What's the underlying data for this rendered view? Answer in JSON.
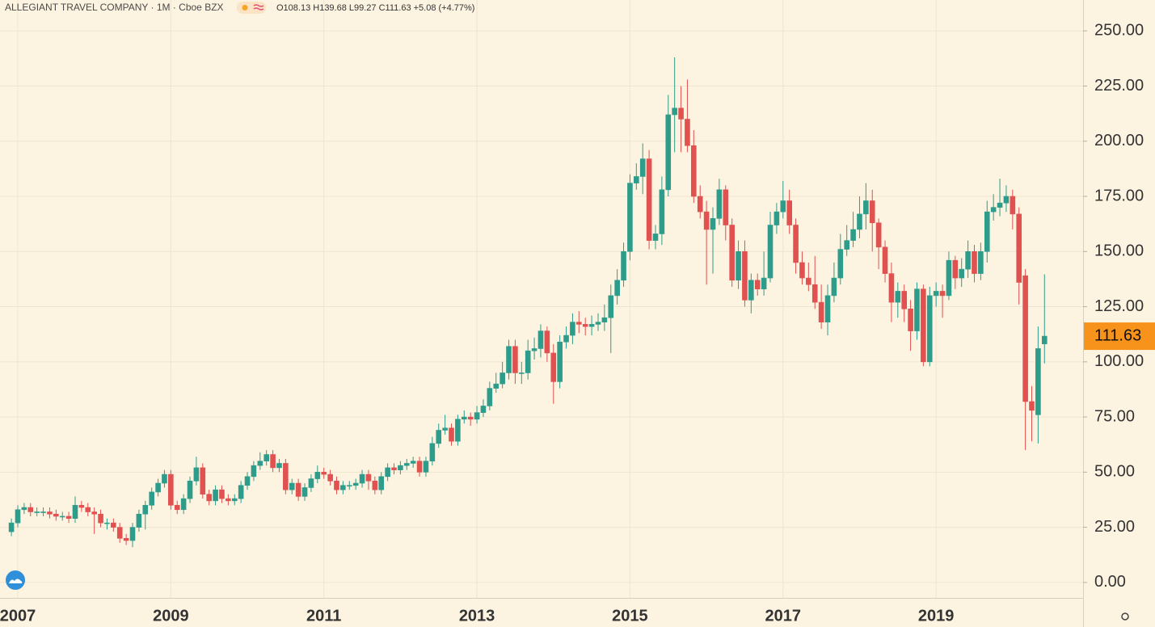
{
  "chart_data": {
    "type": "candlestick",
    "title": "ALLEGIANT TRAVEL COMPANY · 1M · Cboe BZX",
    "ohlc_text": "O108.13 H139.68 L99.27 C111.63 +5.08 (+4.77%)",
    "up_color": "#2e9c8b",
    "down_color": "#e05150",
    "last_price_color": "#f7931a",
    "grid": true,
    "ylim": [
      -7,
      264
    ],
    "yticks": [
      {
        "value": 0,
        "label": "0.00"
      },
      {
        "value": 25,
        "label": "25.00"
      },
      {
        "value": 50,
        "label": "50.00"
      },
      {
        "value": 75,
        "label": "75.00"
      },
      {
        "value": 100,
        "label": "100.00"
      },
      {
        "value": 125,
        "label": "125.00"
      },
      {
        "value": 150,
        "label": "150.00"
      },
      {
        "value": 175,
        "label": "175.00"
      },
      {
        "value": 200,
        "label": "200.00"
      },
      {
        "value": 225,
        "label": "225.00"
      },
      {
        "value": 250,
        "label": "250.00"
      }
    ],
    "categories": [
      null,
      "2007",
      null,
      null,
      null,
      null,
      null,
      null,
      null,
      null,
      null,
      null,
      null,
      null,
      null,
      null,
      null,
      null,
      null,
      null,
      null,
      null,
      null,
      null,
      null,
      "2009",
      null,
      null,
      null,
      null,
      null,
      null,
      null,
      null,
      null,
      null,
      null,
      null,
      null,
      null,
      null,
      null,
      null,
      null,
      null,
      null,
      null,
      null,
      null,
      "2011",
      null,
      null,
      null,
      null,
      null,
      null,
      null,
      null,
      null,
      null,
      null,
      null,
      null,
      null,
      null,
      null,
      null,
      null,
      null,
      null,
      null,
      null,
      null,
      "2013",
      null,
      null,
      null,
      null,
      null,
      null,
      null,
      null,
      null,
      null,
      null,
      null,
      null,
      null,
      null,
      null,
      null,
      null,
      null,
      null,
      null,
      null,
      null,
      "2015",
      null,
      null,
      null,
      null,
      null,
      null,
      null,
      null,
      null,
      null,
      null,
      null,
      null,
      null,
      null,
      null,
      null,
      null,
      null,
      null,
      null,
      null,
      null,
      "2017",
      null,
      null,
      null,
      null,
      null,
      null,
      null,
      null,
      null,
      null,
      null,
      null,
      null,
      null,
      null,
      null,
      null,
      null,
      null,
      null,
      null,
      null,
      null,
      "2019",
      null,
      null,
      null,
      null,
      null,
      null,
      null,
      null,
      null,
      null,
      null,
      null,
      null,
      null,
      null,
      null,
      null
    ],
    "open": [
      23,
      27,
      33,
      34,
      32,
      32,
      32,
      31,
      30,
      30,
      29,
      35,
      34,
      32,
      31,
      27,
      27,
      25,
      20,
      19,
      25,
      31,
      35,
      41,
      45,
      49,
      35,
      33,
      38,
      46,
      52,
      40,
      37,
      42,
      38,
      37,
      38,
      44,
      48,
      53,
      55,
      58,
      52,
      54,
      42,
      45,
      39,
      43,
      47,
      50,
      49,
      46,
      42,
      44,
      44,
      45,
      49,
      46,
      42,
      48,
      52,
      51,
      53,
      54,
      55,
      50,
      55,
      63,
      69,
      70,
      64,
      74,
      75,
      74,
      77,
      80,
      88,
      90,
      95,
      107,
      95,
      95,
      105,
      106,
      114,
      104,
      91,
      109,
      112,
      118,
      117,
      116,
      117,
      118,
      120,
      130,
      137,
      150,
      181,
      184,
      192,
      155,
      158,
      178,
      212,
      215,
      210,
      198,
      175,
      168,
      160,
      165,
      178,
      162,
      137,
      150,
      128,
      137,
      133,
      138,
      162,
      168,
      173,
      162,
      145,
      138,
      135,
      127,
      118,
      130,
      138,
      151,
      155,
      160,
      167,
      173,
      163,
      152,
      140,
      127,
      132,
      124,
      114,
      133,
      100,
      130,
      132,
      130,
      146,
      138,
      142,
      150,
      140,
      150,
      168,
      170,
      172,
      175,
      167,
      139,
      82,
      76,
      108.13
    ],
    "high": [
      29,
      35,
      36,
      36,
      34,
      34,
      34,
      33,
      32,
      32,
      39,
      37,
      36,
      34,
      33,
      29,
      29,
      27,
      22,
      27,
      33,
      37,
      43,
      47,
      51,
      51,
      37,
      40,
      48,
      57,
      54,
      42,
      44,
      44,
      40,
      40,
      46,
      50,
      55,
      59,
      60,
      60,
      56,
      56,
      47,
      47,
      45,
      49,
      53,
      52,
      51,
      48,
      46,
      46,
      47,
      51,
      51,
      48,
      50,
      54,
      54,
      55,
      56,
      57,
      57,
      57,
      66,
      72,
      76,
      72,
      76,
      78,
      77,
      80,
      83,
      91,
      95,
      100,
      110,
      110,
      100,
      110,
      111,
      117,
      116,
      108,
      112,
      116,
      122,
      123,
      120,
      121,
      122,
      126,
      135,
      142,
      154,
      185,
      190,
      199,
      196,
      162,
      184,
      221,
      238,
      225,
      228,
      205,
      180,
      173,
      170,
      183,
      180,
      165,
      155,
      155,
      140,
      140,
      150,
      168,
      172,
      182,
      178,
      165,
      150,
      145,
      148,
      135,
      135,
      145,
      158,
      162,
      168,
      175,
      181,
      178,
      165,
      155,
      145,
      136,
      135,
      128,
      136,
      135,
      134,
      136,
      135,
      150,
      148,
      147,
      155,
      153,
      154,
      173,
      176,
      183,
      180,
      178,
      170,
      142,
      89,
      116,
      139.68
    ],
    "low": [
      21,
      25,
      31,
      30,
      30,
      30,
      29,
      28,
      28,
      27,
      27,
      32,
      30,
      22,
      25,
      24,
      23,
      18,
      17,
      16,
      23,
      24,
      33,
      39,
      43,
      33,
      31,
      31,
      36,
      44,
      38,
      35,
      35,
      36,
      35,
      35,
      36,
      42,
      46,
      51,
      53,
      50,
      50,
      40,
      40,
      37,
      37,
      41,
      45,
      47,
      44,
      40,
      40,
      42,
      42,
      43,
      42,
      40,
      40,
      46,
      49,
      49,
      51,
      52,
      48,
      48,
      53,
      61,
      67,
      62,
      62,
      72,
      71,
      72,
      75,
      78,
      86,
      88,
      92,
      90,
      90,
      92,
      101,
      102,
      100,
      81,
      88,
      106,
      108,
      113,
      112,
      112,
      114,
      114,
      104,
      126,
      134,
      146,
      178,
      176,
      151,
      151,
      153,
      175,
      195,
      195,
      195,
      172,
      165,
      135,
      140,
      162,
      155,
      134,
      133,
      125,
      122,
      130,
      130,
      136,
      158,
      165,
      158,
      140,
      135,
      132,
      124,
      115,
      112,
      127,
      135,
      148,
      152,
      156,
      160,
      150,
      142,
      136,
      118,
      120,
      118,
      105,
      110,
      98,
      98,
      125,
      120,
      128,
      133,
      134,
      138,
      136,
      137,
      145,
      164,
      166,
      168,
      160,
      126,
      60,
      64,
      63,
      99.27
    ],
    "close": [
      27,
      33,
      34,
      32,
      32,
      32,
      31,
      30,
      30,
      29,
      35,
      34,
      32,
      31,
      27,
      27,
      25,
      20,
      19,
      25,
      31,
      35,
      41,
      45,
      49,
      35,
      33,
      38,
      46,
      52,
      40,
      37,
      42,
      38,
      37,
      38,
      44,
      48,
      53,
      55,
      58,
      52,
      54,
      42,
      45,
      39,
      43,
      47,
      50,
      49,
      46,
      42,
      44,
      44,
      45,
      49,
      46,
      42,
      48,
      52,
      51,
      53,
      54,
      55,
      50,
      55,
      63,
      69,
      70,
      64,
      74,
      75,
      74,
      77,
      80,
      88,
      90,
      95,
      107,
      95,
      95,
      105,
      106,
      114,
      104,
      91,
      109,
      112,
      118,
      117,
      116,
      117,
      118,
      120,
      130,
      137,
      150,
      181,
      184,
      192,
      155,
      158,
      178,
      212,
      215,
      210,
      198,
      175,
      168,
      160,
      165,
      178,
      162,
      137,
      150,
      128,
      137,
      133,
      138,
      162,
      168,
      173,
      162,
      145,
      138,
      135,
      127,
      118,
      130,
      138,
      151,
      155,
      160,
      167,
      173,
      163,
      152,
      140,
      127,
      132,
      124,
      114,
      133,
      100,
      130,
      132,
      130,
      146,
      138,
      142,
      150,
      140,
      150,
      168,
      170,
      172,
      175,
      167,
      136,
      82,
      78,
      106,
      111.63
    ]
  }
}
